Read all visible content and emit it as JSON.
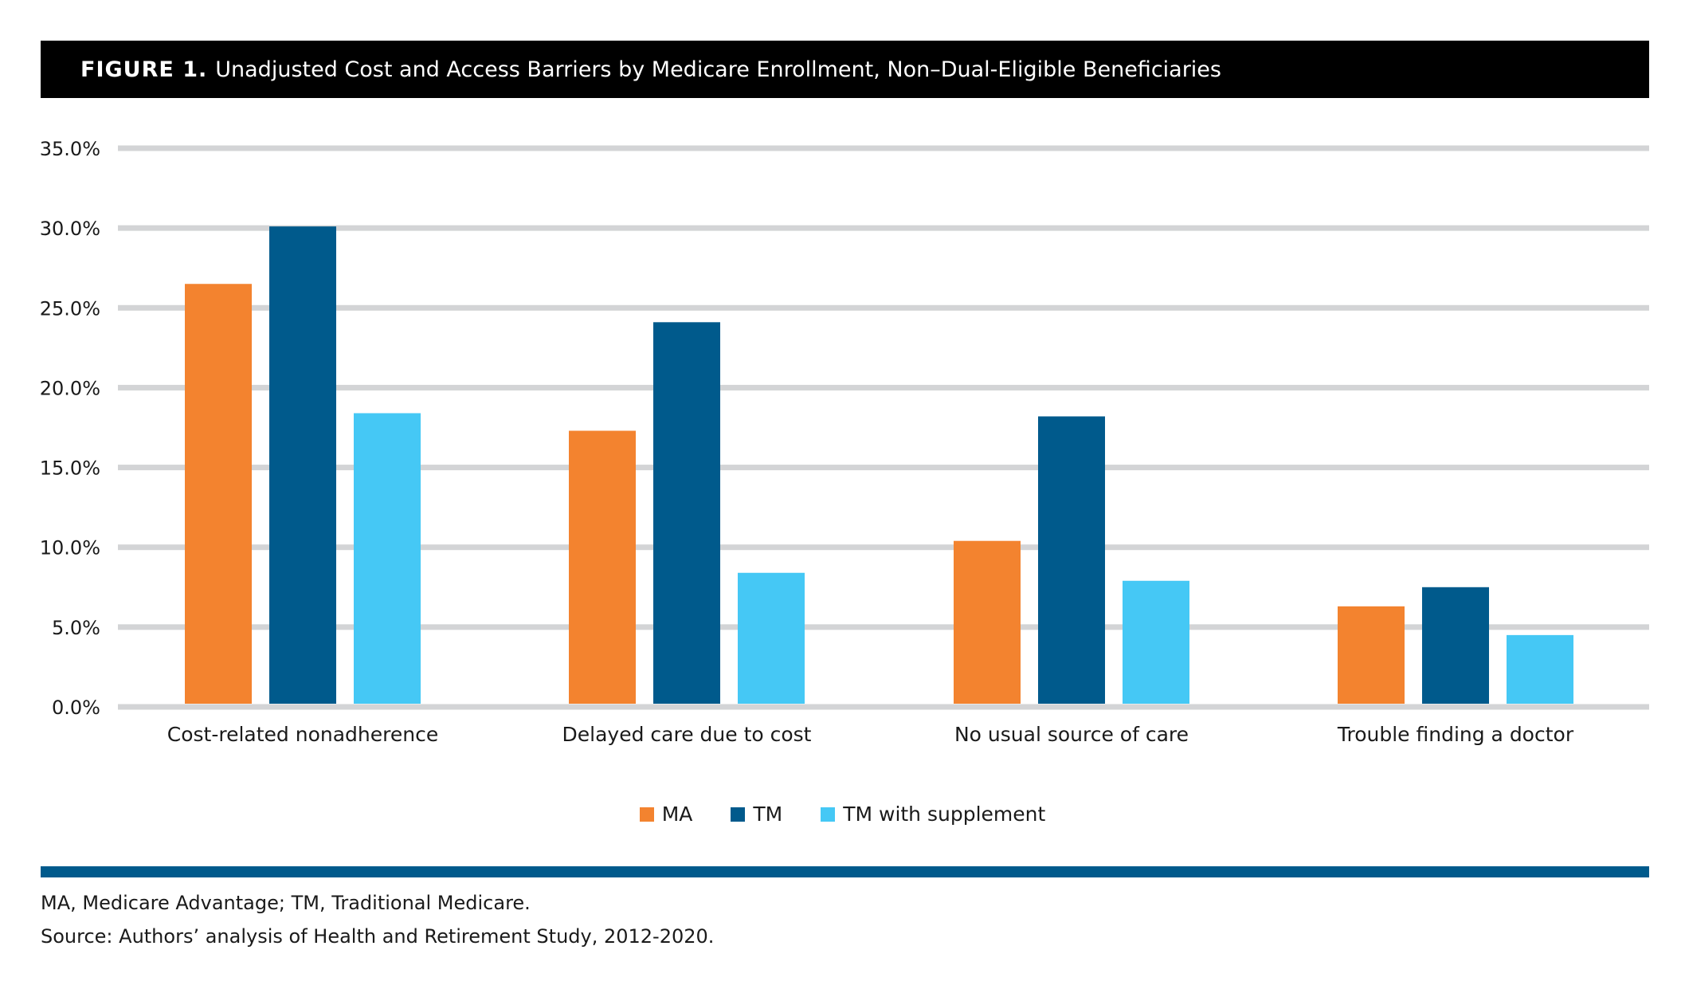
{
  "figure": {
    "label": "FIGURE 1.",
    "title": "Unadjusted Cost and Access Barriers by Medicare Enrollment, Non–Dual-Eligible Beneficiaries"
  },
  "colors": {
    "MA": "#F3832F",
    "TM": "#005A8C",
    "TM_supplement": "#45C8F5",
    "grid": "#D3D4D6",
    "rule": "#005A8C"
  },
  "chart_data": {
    "type": "bar",
    "title": "Unadjusted Cost and Access Barriers by Medicare Enrollment, Non–Dual-Eligible Beneficiaries",
    "xlabel": "",
    "ylabel": "",
    "ylim": [
      0,
      35
    ],
    "yticks": [
      0,
      5,
      10,
      15,
      20,
      25,
      30,
      35
    ],
    "ytick_labels": [
      "0.0%",
      "5.0%",
      "10.0%",
      "15.0%",
      "20.0%",
      "25.0%",
      "30.0%",
      "35.0%"
    ],
    "grid": true,
    "legend_position": "bottom-center",
    "categories": [
      "Cost-related nonadherence",
      "Delayed care due to cost",
      "No usual source of care",
      "Trouble finding a doctor"
    ],
    "series": [
      {
        "name": "MA",
        "color": "#F3832F",
        "values": [
          26.5,
          17.3,
          10.4,
          6.3
        ]
      },
      {
        "name": "TM",
        "color": "#005A8C",
        "values": [
          30.1,
          24.1,
          18.2,
          7.5
        ]
      },
      {
        "name": "TM with supplement",
        "color": "#45C8F5",
        "values": [
          18.4,
          8.4,
          7.9,
          4.5
        ]
      }
    ]
  },
  "notes": {
    "abbreviations": "MA, Medicare Advantage; TM, Traditional Medicare.",
    "source": "Source: Authors’ analysis of Health and Retirement Study, 2012-2020."
  }
}
